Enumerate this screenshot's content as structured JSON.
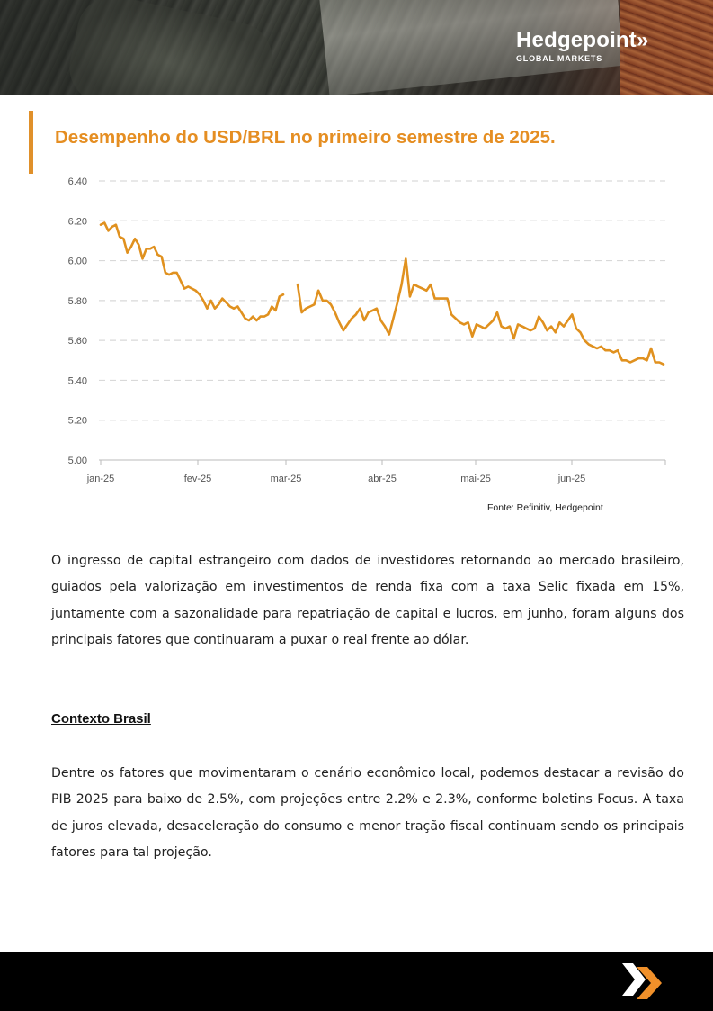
{
  "header": {
    "logo_name": "Hedgepoint",
    "logo_arrows": "»",
    "logo_subtitle": "GLOBAL MARKETS"
  },
  "title": "Desempenho do USD/BRL no primeiro semestre de 2025.",
  "chart_data": {
    "type": "line",
    "title": "",
    "xlabel": "",
    "ylabel": "",
    "ylim": [
      5.0,
      6.4
    ],
    "yticks": [
      "5.00",
      "5.20",
      "5.40",
      "5.60",
      "5.80",
      "6.00",
      "6.20",
      "6.40"
    ],
    "xticks": [
      "jan-25",
      "fev-25",
      "mar-25",
      "abr-25",
      "mai-25",
      "jun-25"
    ],
    "grid": "horizontal-dashed",
    "color": "#e0911f",
    "series": [
      {
        "segments": [
          [
            6.18,
            6.19,
            6.15,
            6.17,
            6.18,
            6.12,
            6.11,
            6.04,
            6.07,
            6.11,
            6.08,
            6.01,
            6.06,
            6.06,
            6.07,
            6.03,
            6.02,
            5.94,
            5.93,
            5.94,
            5.94,
            5.9,
            5.86,
            5.87,
            5.86,
            5.85,
            5.83,
            5.8,
            5.76,
            5.8,
            5.76,
            5.78,
            5.81,
            5.79,
            5.77,
            5.76,
            5.77,
            5.74,
            5.71,
            5.7,
            5.72,
            5.7,
            5.72,
            5.72,
            5.73,
            5.77,
            5.75,
            5.82,
            5.83
          ],
          [
            5.88,
            5.74,
            5.76,
            5.77,
            5.78,
            5.85,
            5.8,
            5.8,
            5.78,
            5.74,
            5.69,
            5.65,
            5.68,
            5.71,
            5.73,
            5.76,
            5.7,
            5.74,
            5.75,
            5.76,
            5.7,
            5.67,
            5.63,
            5.71,
            5.79,
            5.88,
            6.01,
            5.82,
            5.88,
            5.87,
            5.86,
            5.85,
            5.88,
            5.81,
            5.81,
            5.81,
            5.81,
            5.73,
            5.71,
            5.69,
            5.68,
            5.69,
            5.62,
            5.68,
            5.67,
            5.66,
            5.68,
            5.7,
            5.74,
            5.67,
            5.66,
            5.67,
            5.61,
            5.68,
            5.67,
            5.66,
            5.65,
            5.66,
            5.72,
            5.69,
            5.65,
            5.67,
            5.64,
            5.69,
            5.67,
            5.7,
            5.73,
            5.66,
            5.64,
            5.6,
            5.58,
            5.57,
            5.56,
            5.57,
            5.55,
            5.55,
            5.54,
            5.55,
            5.5,
            5.5,
            5.49,
            5.5,
            5.51,
            5.51,
            5.5,
            5.56,
            5.49,
            5.49,
            5.48
          ]
        ]
      }
    ]
  },
  "source": "Fonte: Refinitiv, Hedgepoint",
  "paragraph1": "O ingresso de capital estrangeiro com dados de investidores retornando ao mercado brasileiro, guiados pela valorização em investimentos de renda fixa com a taxa Selic fixada em 15%, juntamente com a sazonalidade para repatriação de capital e lucros, em junho, foram alguns dos principais fatores que continuaram a puxar o real frente ao dólar.",
  "section_title": "Contexto Brasil",
  "paragraph2": "Dentre os fatores que movimentaram o cenário econômico local, podemos destacar a revisão do PIB 2025 para baixo de 2.5%, com projeções entre 2.2% e 2.3%, conforme boletins Focus.  A taxa de juros elevada, desaceleração do consumo e menor tração fiscal continuam  sendo os principais  fatores  para tal projeção.",
  "colors": {
    "accent": "#e58e22",
    "footer": "#000000",
    "footer_mark_white": "#ffffff",
    "footer_mark_orange": "#f0902a"
  }
}
